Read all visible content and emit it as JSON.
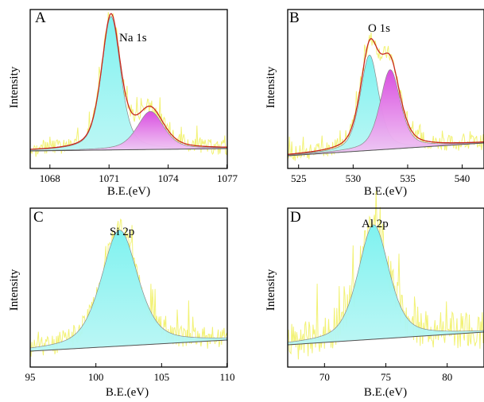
{
  "figure": {
    "panels": [
      {
        "letter": "A",
        "title": "Na 1s",
        "xlabel": "B.E.(eV)",
        "ylabel": "Intensity"
      },
      {
        "letter": "B",
        "title": "O 1s",
        "xlabel": "B.E.(eV)",
        "ylabel": "Intensity"
      },
      {
        "letter": "C",
        "title": "Si 2p",
        "xlabel": "B.E.(eV)",
        "ylabel": "Intensity"
      },
      {
        "letter": "D",
        "title": "Al 2p",
        "xlabel": "B.E.(eV)",
        "ylabel": "Intensity"
      }
    ]
  },
  "colors": {
    "raw": "#f2f274",
    "envelope": "#c8281e",
    "cyan_fill": "#7ff2f0",
    "magenta_fill": "#d94fe0",
    "baseline": "#555555",
    "axis": "#000000"
  },
  "chart_data": [
    {
      "type": "line",
      "title": "Na 1s",
      "xlabel": "B.E.(eV)",
      "ylabel": "Intensity",
      "xlim": [
        1067,
        1077
      ],
      "ylim": [
        0,
        1.0
      ],
      "xticks": [
        1068,
        1071,
        1074,
        1077
      ],
      "baseline": [
        [
          1067,
          0.11
        ],
        [
          1077,
          0.125
        ]
      ],
      "peaks": [
        {
          "center": 1071.1,
          "height": 0.84,
          "fwhm": 1.15,
          "color": "cyan"
        },
        {
          "center": 1073.1,
          "height": 0.24,
          "fwhm": 1.6,
          "color": "magenta"
        }
      ],
      "has_envelope": true,
      "noise": 0.05,
      "seed": 3
    },
    {
      "type": "line",
      "title": "O 1s",
      "xlabel": "B.E.(eV)",
      "ylabel": "Intensity",
      "xlim": [
        524,
        542
      ],
      "ylim": [
        0,
        1.0
      ],
      "xticks": [
        525,
        530,
        535,
        540
      ],
      "baseline": [
        [
          524,
          0.08
        ],
        [
          542,
          0.16
        ]
      ],
      "peaks": [
        {
          "center": 531.5,
          "height": 0.6,
          "fwhm": 2.0,
          "color": "cyan"
        },
        {
          "center": 533.4,
          "height": 0.5,
          "fwhm": 2.2,
          "color": "magenta"
        }
      ],
      "has_envelope": true,
      "noise": 0.05,
      "seed": 7
    },
    {
      "type": "line",
      "title": "Si 2p",
      "xlabel": "B.E.(eV)",
      "ylabel": "Intensity",
      "xlim": [
        95,
        110
      ],
      "ylim": [
        0,
        1.0
      ],
      "xticks": [
        95,
        100,
        105,
        110
      ],
      "baseline": [
        [
          95,
          0.1
        ],
        [
          110,
          0.17
        ]
      ],
      "peaks": [
        {
          "center": 101.8,
          "height": 0.73,
          "fwhm": 3.3,
          "color": "cyan"
        }
      ],
      "has_envelope": false,
      "noise": 0.07,
      "seed": 11
    },
    {
      "type": "line",
      "title": "Al 2p",
      "xlabel": "B.E.(eV)",
      "ylabel": "Intensity",
      "xlim": [
        67,
        83
      ],
      "ylim": [
        0,
        1.0
      ],
      "xticks": [
        70,
        75,
        80
      ],
      "baseline": [
        [
          67,
          0.14
        ],
        [
          83,
          0.22
        ]
      ],
      "peaks": [
        {
          "center": 74.0,
          "height": 0.72,
          "fwhm": 3.0,
          "color": "cyan"
        }
      ],
      "has_envelope": false,
      "noise": 0.12,
      "seed": 19
    }
  ]
}
